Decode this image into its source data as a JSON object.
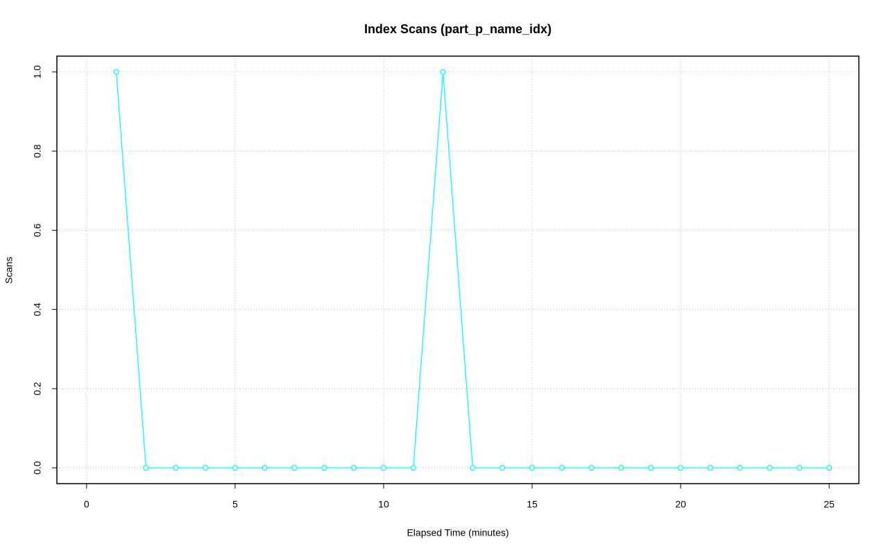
{
  "chart_data": {
    "type": "line",
    "title": "Index Scans (part_p_name_idx)",
    "x_label": "Elapsed Time (minutes)",
    "y_label": "Scans",
    "x": [
      1,
      2,
      3,
      4,
      5,
      6,
      7,
      8,
      9,
      10,
      11,
      12,
      13,
      14,
      15,
      16,
      17,
      18,
      19,
      20,
      21,
      22,
      23,
      24,
      25
    ],
    "series": [
      {
        "color": "#00ffff",
        "values": [
          1,
          0,
          0,
          0,
          0,
          0,
          0,
          0,
          0,
          0,
          0,
          1,
          0,
          0,
          0,
          0,
          0,
          0,
          0,
          0,
          0,
          0,
          0,
          0,
          0
        ]
      }
    ],
    "xlim": [
      -1,
      26
    ],
    "xticks": [
      0,
      5,
      10,
      15,
      20,
      25
    ],
    "ylim": [
      -0.04,
      1.04
    ],
    "yticks": [
      {
        "value": 0,
        "label": "0.0"
      },
      0.2,
      0.4,
      0.6,
      0.8,
      {
        "value": 1,
        "label": "1.0"
      }
    ],
    "grid": true
  }
}
